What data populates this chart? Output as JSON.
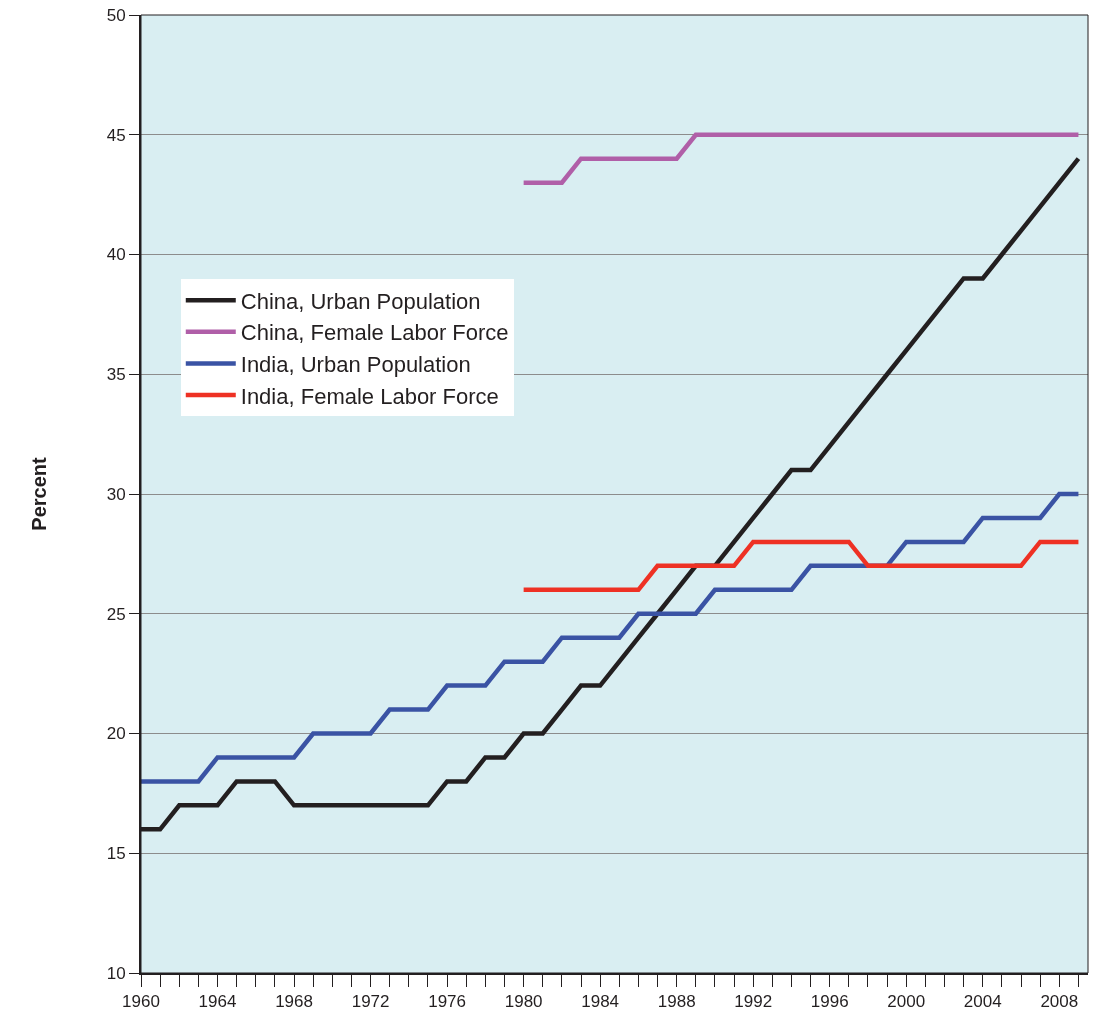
{
  "chart_data": {
    "type": "line",
    "ylabel": "Percent",
    "ylim": [
      10,
      50
    ],
    "yticks": [
      10,
      15,
      20,
      25,
      30,
      35,
      40,
      45,
      50
    ],
    "xlim": [
      1960,
      2009.5
    ],
    "xticks": [
      1960,
      {
        "value": 1961,
        "label": null
      },
      {
        "value": 1962,
        "label": null
      },
      {
        "value": 1963,
        "label": null
      },
      1964,
      {
        "value": 1965,
        "label": null
      },
      {
        "value": 1966,
        "label": null
      },
      {
        "value": 1967,
        "label": null
      },
      1968,
      {
        "value": 1969,
        "label": null
      },
      {
        "value": 1970,
        "label": null
      },
      {
        "value": 1971,
        "label": null
      },
      1972,
      {
        "value": 1973,
        "label": null
      },
      {
        "value": 1974,
        "label": null
      },
      {
        "value": 1975,
        "label": null
      },
      1976,
      {
        "value": 1977,
        "label": null
      },
      {
        "value": 1978,
        "label": null
      },
      {
        "value": 1979,
        "label": null
      },
      1980,
      {
        "value": 1981,
        "label": null
      },
      {
        "value": 1982,
        "label": null
      },
      {
        "value": 1983,
        "label": null
      },
      1984,
      {
        "value": 1985,
        "label": null
      },
      {
        "value": 1986,
        "label": null
      },
      {
        "value": 1987,
        "label": null
      },
      1988,
      {
        "value": 1989,
        "label": null
      },
      {
        "value": 1990,
        "label": null
      },
      {
        "value": 1991,
        "label": null
      },
      1992,
      {
        "value": 1993,
        "label": null
      },
      {
        "value": 1994,
        "label": null
      },
      {
        "value": 1995,
        "label": null
      },
      1996,
      {
        "value": 1997,
        "label": null
      },
      {
        "value": 1998,
        "label": null
      },
      {
        "value": 1999,
        "label": null
      },
      2000,
      {
        "value": 2001,
        "label": null
      },
      {
        "value": 2002,
        "label": null
      },
      {
        "value": 2003,
        "label": null
      },
      2004,
      {
        "value": 2005,
        "label": null
      },
      {
        "value": 2006,
        "label": null
      },
      {
        "value": 2007,
        "label": null
      },
      2008,
      {
        "value": 2009,
        "label": null
      }
    ],
    "grid": "y",
    "legend": "top left",
    "marker": "none",
    "line_style": "solid",
    "series": [
      {
        "name": "China, Urban Population",
        "color": "#231f20",
        "x": [
          1960,
          1961,
          1962,
          1963,
          1964,
          1965,
          1966,
          1967,
          1968,
          1969,
          1970,
          1971,
          1972,
          1973,
          1974,
          1975,
          1976,
          1977,
          1978,
          1979,
          1980,
          1981,
          1982,
          1983,
          1984,
          1985,
          1986,
          1987,
          1988,
          1989,
          1990,
          1991,
          1992,
          1993,
          1994,
          1995,
          1996,
          1997,
          1998,
          1999,
          2000,
          2001,
          2002,
          2003,
          2004,
          2005,
          2006,
          2007,
          2008,
          2009
        ],
        "values": [
          16,
          16,
          17,
          17,
          17,
          18,
          18,
          18,
          17,
          17,
          17,
          17,
          17,
          17,
          17,
          17,
          18,
          18,
          19,
          19,
          20,
          20,
          21,
          22,
          22,
          23,
          24,
          25,
          26,
          27,
          27,
          28,
          29,
          30,
          31,
          31,
          32,
          33,
          34,
          35,
          36,
          37,
          38,
          39,
          39,
          40,
          41,
          42,
          43,
          44
        ]
      },
      {
        "name": "China, Female Labor Force",
        "color": "#b05fa8",
        "x": [
          1980,
          1981,
          1982,
          1983,
          1984,
          1985,
          1986,
          1987,
          1988,
          1989,
          1990,
          1991,
          1992,
          1993,
          1994,
          1995,
          1996,
          1997,
          1998,
          1999,
          2000,
          2001,
          2002,
          2003,
          2004,
          2005,
          2006,
          2007,
          2008,
          2009
        ],
        "values": [
          43,
          43,
          43,
          44,
          44,
          44,
          44,
          44,
          44,
          45,
          45,
          45,
          45,
          45,
          45,
          45,
          45,
          45,
          45,
          45,
          45,
          45,
          45,
          45,
          45,
          45,
          45,
          45,
          45,
          45
        ]
      },
      {
        "name": "India, Urban Population",
        "color": "#3a53a4",
        "x": [
          1960,
          1961,
          1962,
          1963,
          1964,
          1965,
          1966,
          1967,
          1968,
          1969,
          1970,
          1971,
          1972,
          1973,
          1974,
          1975,
          1976,
          1977,
          1978,
          1979,
          1980,
          1981,
          1982,
          1983,
          1984,
          1985,
          1986,
          1987,
          1988,
          1989,
          1990,
          1991,
          1992,
          1993,
          1994,
          1995,
          1996,
          1997,
          1998,
          1999,
          2000,
          2001,
          2002,
          2003,
          2004,
          2005,
          2006,
          2007,
          2008,
          2009
        ],
        "values": [
          18,
          18,
          18,
          18,
          19,
          19,
          19,
          19,
          19,
          20,
          20,
          20,
          20,
          21,
          21,
          21,
          22,
          22,
          22,
          23,
          23,
          23,
          24,
          24,
          24,
          24,
          25,
          25,
          25,
          25,
          26,
          26,
          26,
          26,
          26,
          27,
          27,
          27,
          27,
          27,
          28,
          28,
          28,
          28,
          29,
          29,
          29,
          29,
          30,
          30
        ]
      },
      {
        "name": "India, Female Labor Force",
        "color": "#ee3124",
        "x": [
          1980,
          1981,
          1982,
          1983,
          1984,
          1985,
          1986,
          1987,
          1988,
          1989,
          1990,
          1991,
          1992,
          1993,
          1994,
          1995,
          1996,
          1997,
          1998,
          1999,
          2000,
          2001,
          2002,
          2003,
          2004,
          2005,
          2006,
          2007,
          2008,
          2009
        ],
        "values": [
          26,
          26,
          26,
          26,
          26,
          26,
          26,
          27,
          27,
          27,
          27,
          27,
          28,
          28,
          28,
          28,
          28,
          28,
          27,
          27,
          27,
          27,
          27,
          27,
          27,
          27,
          27,
          28,
          28,
          28
        ]
      }
    ]
  }
}
